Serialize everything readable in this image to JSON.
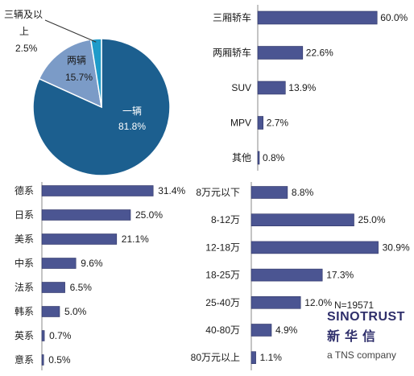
{
  "chart_data": [
    {
      "type": "pie",
      "slices": [
        {
          "label": "一辆",
          "value": 81.8,
          "value_label": "81.8%",
          "color": "#1c5f8f"
        },
        {
          "label": "两辆",
          "value": 15.7,
          "value_label": "15.7%",
          "color": "#7b9bc7"
        },
        {
          "label": "三辆及以上",
          "label_lines": [
            "三辆及以",
            "上"
          ],
          "value": 2.5,
          "value_label": "2.5%",
          "color": "#1f9bc9"
        }
      ]
    },
    {
      "type": "bar",
      "orientation": "horizontal",
      "categories": [
        "三厢轿车",
        "两厢轿车",
        "SUV",
        "MPV",
        "其他"
      ],
      "values": [
        60.0,
        22.6,
        13.9,
        2.7,
        0.8
      ],
      "value_labels": [
        "60.0%",
        "22.6%",
        "13.9%",
        "2.7%",
        "0.8%"
      ]
    },
    {
      "type": "bar",
      "orientation": "horizontal",
      "categories": [
        "德系",
        "日系",
        "美系",
        "中系",
        "法系",
        "韩系",
        "英系",
        "意系"
      ],
      "values": [
        31.4,
        25.0,
        21.1,
        9.6,
        6.5,
        5.0,
        0.7,
        0.5
      ],
      "value_labels": [
        "31.4%",
        "25.0%",
        "21.1%",
        "9.6%",
        "6.5%",
        "5.0%",
        "0.7%",
        "0.5%"
      ]
    },
    {
      "type": "bar",
      "orientation": "horizontal",
      "categories": [
        "8万元以下",
        "8-12万",
        "12-18万",
        "18-25万",
        "25-40万",
        "40-80万",
        "80万元以上"
      ],
      "values": [
        8.8,
        25.0,
        30.9,
        17.3,
        12.0,
        4.9,
        1.1
      ],
      "value_labels": [
        "8.8%",
        "25.0%",
        "30.9%",
        "17.3%",
        "12.0%",
        "4.9%",
        "1.1%"
      ]
    }
  ],
  "style": {
    "bar_color": "#4b5592",
    "bar_border": "#2f3566",
    "axis_color": "#888888"
  },
  "note": {
    "sample_size": "N=19571"
  },
  "brand": {
    "name": "SINOTRUST",
    "cn_name": "新华信",
    "tagline": "a TNS company"
  }
}
